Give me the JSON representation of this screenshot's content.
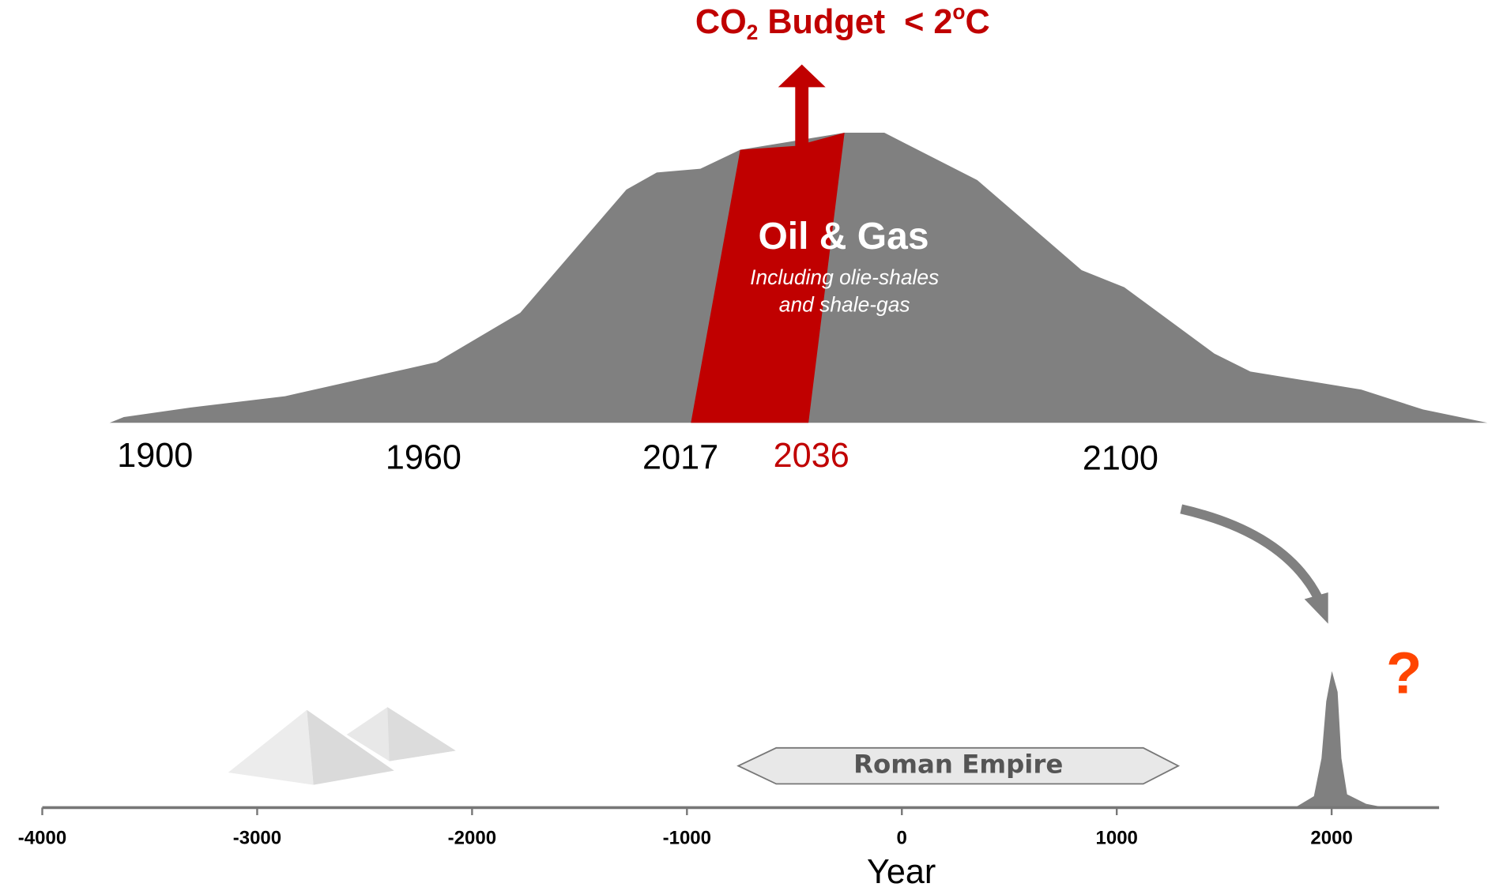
{
  "title": {
    "main": "CO",
    "sub": "2",
    "middle": " Budget  < 2",
    "sup": "o",
    "end": "C"
  },
  "years": [
    "1900",
    "1960",
    "2017",
    "2036",
    "2100"
  ],
  "band": {
    "label": "Oil & Gas",
    "note_lines": [
      "Including olie-shales",
      "and shale-gas"
    ]
  },
  "timeline": {
    "xlim": [
      -4000,
      2500
    ],
    "xticks": [
      -4000,
      -3000,
      -2000,
      -1000,
      0,
      1000,
      2000
    ],
    "xlabel": "Year",
    "period": "Roman Empire",
    "question": "?"
  }
}
